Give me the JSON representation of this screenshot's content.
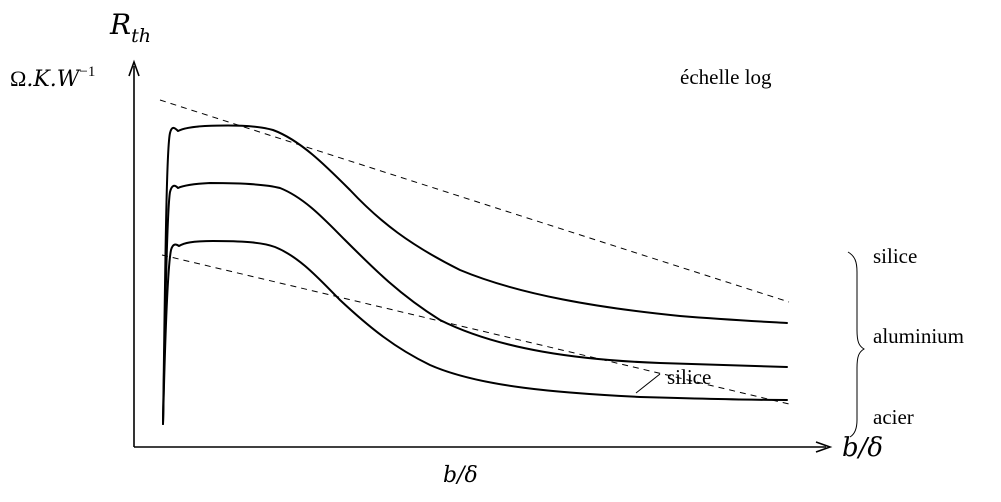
{
  "y_axis": {
    "symbol": "R",
    "subscript": "th",
    "unit": {
      "omega": "Ω",
      "k_part": ".K.W",
      "exponent": "−1"
    }
  },
  "x_axis": {
    "arrow_label": "b/δ",
    "bottom_label": "b/δ"
  },
  "scale_note": "échelle log",
  "curve_labels": {
    "top": "silice",
    "middle": "aluminium",
    "bottom": "acier"
  },
  "callout_label": "silice"
}
